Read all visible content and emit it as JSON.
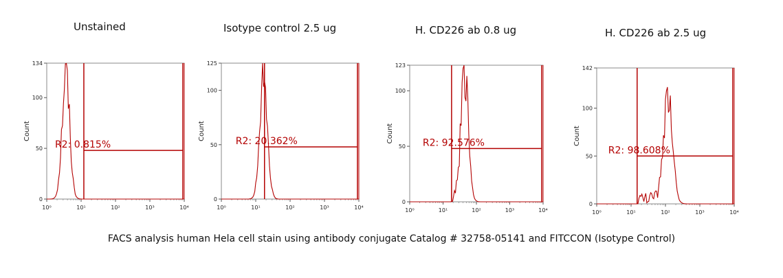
{
  "figure": {
    "caption": "FACS analysis human Hela cell stain using antibody conjugate Catalog # 32758-05141 and FITCCON (Isotype Control)"
  },
  "chart_data": [
    {
      "type": "histogram",
      "title": "Unstained",
      "xlabel": "",
      "ylabel": "Count",
      "xscale": "log",
      "xlim": [
        1,
        10000
      ],
      "ylim": [
        0,
        134
      ],
      "yticks": [
        0,
        50,
        100,
        134
      ],
      "xtick_labels": [
        "10⁰",
        "10¹",
        "10²",
        "10³",
        "10⁴"
      ],
      "peak_x": 3.6,
      "peak_y": 134,
      "gate": {
        "label": "R2: 0.815%",
        "percent": 0.815,
        "x_start": 12,
        "x_end": 10000,
        "y": 48
      }
    },
    {
      "type": "histogram",
      "title": "Isotype control 2.5 ug",
      "xlabel": "",
      "ylabel": "Count",
      "xscale": "log",
      "xlim": [
        1,
        10000
      ],
      "ylim": [
        0,
        125
      ],
      "yticks": [
        0,
        50,
        100,
        125
      ],
      "xtick_labels": [
        "10⁰",
        "10¹",
        "10²",
        "10³",
        "10⁴"
      ],
      "peak_x": 17,
      "peak_y": 125,
      "gate": {
        "label": "R2: 20.362%",
        "percent": 20.362,
        "x_start": 18,
        "x_end": 10000,
        "y": 48
      }
    },
    {
      "type": "histogram",
      "title": "H. CD226 ab 0.8 ug",
      "xlabel": "",
      "ylabel": "Count",
      "xscale": "log",
      "xlim": [
        1,
        10000
      ],
      "ylim": [
        0,
        123
      ],
      "yticks": [
        0,
        50,
        100,
        123
      ],
      "xtick_labels": [
        "10⁰",
        "10¹",
        "10²",
        "10³",
        "10⁴"
      ],
      "peak_x": 45,
      "peak_y": 123,
      "gate": {
        "label": "R2: 92.576%",
        "percent": 92.576,
        "x_start": 18,
        "x_end": 10000,
        "y": 48
      }
    },
    {
      "type": "histogram",
      "title": "H. CD226 ab 2.5 ug",
      "xlabel": "",
      "ylabel": "Count",
      "xscale": "log",
      "xlim": [
        1,
        10000
      ],
      "ylim": [
        0,
        142
      ],
      "yticks": [
        0,
        50,
        100,
        142
      ],
      "xtick_labels": [
        "10⁰",
        "10¹",
        "10²",
        "10³",
        "10⁴"
      ],
      "peak_x": 120,
      "peak_y": 118,
      "gate": {
        "label": "R2: 98.608%",
        "percent": 98.608,
        "x_start": 15,
        "x_end": 10000,
        "y": 50
      }
    }
  ]
}
